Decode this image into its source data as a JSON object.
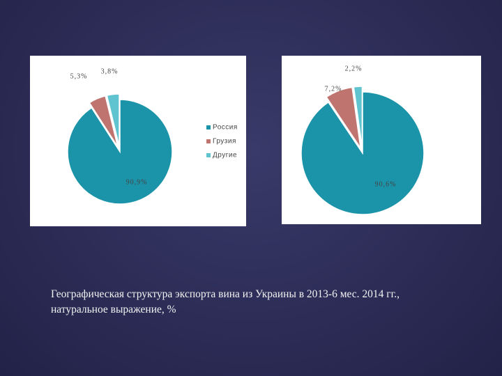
{
  "chart_data": [
    {
      "type": "pie",
      "categories": [
        "Россия",
        "Грузия",
        "Другие"
      ],
      "values": [
        90.9,
        5.3,
        3.8
      ],
      "value_labels": [
        "90,9%",
        "5,3%",
        "3,8%"
      ],
      "colors": [
        "#1b93a8",
        "#c07470",
        "#5fc3d0"
      ],
      "legend": "right"
    },
    {
      "type": "pie",
      "values": [
        90.6,
        7.2,
        2.2
      ],
      "value_labels": [
        "90,6%",
        "7,2%",
        "2,2%"
      ],
      "colors": [
        "#1b93a8",
        "#c07470",
        "#5fc3d0"
      ]
    }
  ],
  "caption": "Географическая структура экспорта вина из Украины в 2013-6 мес. 2014 гг., натуральное выражение, %"
}
